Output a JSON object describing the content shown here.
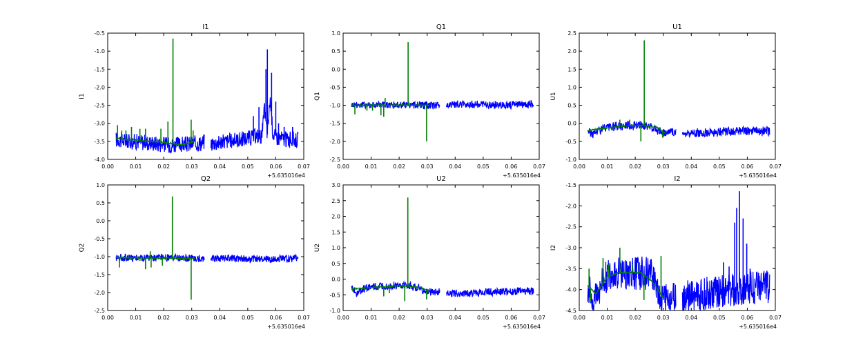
{
  "chart_data": [
    {
      "type": "line",
      "title": "I1",
      "ylabel": "I1",
      "xlabel": "",
      "offset_label": "+5.635016e4",
      "xlim": [
        0.0,
        0.07
      ],
      "ylim": [
        -4.0,
        -0.5
      ],
      "xticks": [
        "0.00",
        "0.01",
        "0.02",
        "0.03",
        "0.04",
        "0.05",
        "0.06",
        "0.07"
      ],
      "yticks": [
        "-4.0",
        "-3.5",
        "-3.0",
        "-2.5",
        "-2.0",
        "-1.5",
        "-1.0",
        "-0.5"
      ],
      "grid": false,
      "series": [
        {
          "color": "#0000ff",
          "x": [
            0.003,
            0.008,
            0.013,
            0.018,
            0.023,
            0.028,
            0.033,
            0.035,
            0.037,
            0.042,
            0.047,
            0.051,
            0.053,
            0.055,
            0.056,
            0.057,
            0.058,
            0.059,
            0.061,
            0.064,
            0.068
          ],
          "y": [
            -3.45,
            -3.5,
            -3.52,
            -3.56,
            -3.6,
            -3.58,
            -3.55,
            -3.5,
            -3.55,
            -3.5,
            -3.45,
            -3.4,
            -3.35,
            -3.35,
            -2.6,
            -3.3,
            -2.3,
            -3.3,
            -3.4,
            -3.45,
            -3.45
          ],
          "band": 0.22,
          "spikes": [
            [
              0.052,
              -2.8
            ],
            [
              0.054,
              -2.55
            ],
            [
              0.0565,
              -1.5
            ],
            [
              0.057,
              -0.95
            ],
            [
              0.0585,
              -1.6
            ],
            [
              0.06,
              -2.4
            ],
            [
              0.061,
              -3.0
            ],
            [
              0.063,
              -3.1
            ],
            [
              0.066,
              -3.1
            ]
          ]
        },
        {
          "color": "#007f00",
          "x": [
            0.003,
            0.006,
            0.01,
            0.014,
            0.018,
            0.022,
            0.026,
            0.029,
            0.031
          ],
          "y": [
            -3.4,
            -3.45,
            -3.45,
            -3.5,
            -3.5,
            -3.55,
            -3.6,
            -3.55,
            -3.5
          ],
          "band": 0.0,
          "spikes": [
            [
              0.0035,
              -3.05
            ],
            [
              0.005,
              -3.2
            ],
            [
              0.0065,
              -3.2
            ],
            [
              0.0085,
              -3.1
            ],
            [
              0.0115,
              -3.15
            ],
            [
              0.0135,
              -3.15
            ],
            [
              0.019,
              -3.15
            ],
            [
              0.0215,
              -2.95
            ],
            [
              0.0233,
              -0.65
            ],
            [
              0.0298,
              -2.9
            ],
            [
              0.0305,
              -3.2
            ]
          ]
        }
      ]
    },
    {
      "type": "line",
      "title": "Q1",
      "ylabel": "Q1",
      "xlabel": "",
      "offset_label": "+5.635016e4",
      "xlim": [
        0.0,
        0.07
      ],
      "ylim": [
        -2.5,
        1.0
      ],
      "xticks": [
        "0.00",
        "0.01",
        "0.02",
        "0.03",
        "0.04",
        "0.05",
        "0.06",
        "0.07"
      ],
      "yticks": [
        "-2.5",
        "-2.0",
        "-1.5",
        "-1.0",
        "-0.5",
        "0.0",
        "0.5",
        "1.0"
      ],
      "grid": false,
      "series": [
        {
          "color": "#0000ff",
          "x": [
            0.003,
            0.01,
            0.02,
            0.03,
            0.035,
            0.037,
            0.045,
            0.055,
            0.068
          ],
          "y": [
            -0.98,
            -0.99,
            -0.99,
            -1.0,
            -1.0,
            -0.98,
            -0.97,
            -1.0,
            -0.97
          ],
          "band": 0.1,
          "spikes": []
        },
        {
          "color": "#007f00",
          "x": [
            0.003,
            0.008,
            0.013,
            0.018,
            0.023,
            0.028,
            0.031
          ],
          "y": [
            -1.0,
            -1.0,
            -1.0,
            -1.0,
            -1.0,
            -1.0,
            -1.0
          ],
          "band": 0.0,
          "spikes": [
            [
              0.0042,
              -1.25
            ],
            [
              0.0085,
              -1.15
            ],
            [
              0.0105,
              -1.15
            ],
            [
              0.0135,
              -1.28
            ],
            [
              0.0145,
              -1.32
            ],
            [
              0.018,
              -1.1
            ],
            [
              0.0232,
              0.75
            ],
            [
              0.0298,
              -2.0
            ],
            [
              0.015,
              -0.8
            ]
          ]
        }
      ]
    },
    {
      "type": "line",
      "title": "U1",
      "ylabel": "U1",
      "xlabel": "",
      "offset_label": "+5.635016e4",
      "xlim": [
        0.0,
        0.07
      ],
      "ylim": [
        -1.0,
        2.5
      ],
      "xticks": [
        "0.00",
        "0.01",
        "0.02",
        "0.03",
        "0.04",
        "0.05",
        "0.06",
        "0.07"
      ],
      "yticks": [
        "-1.0",
        "-0.5",
        "0.0",
        "0.5",
        "1.0",
        "1.5",
        "2.0",
        "2.5"
      ],
      "grid": false,
      "series": [
        {
          "color": "#0000ff",
          "x": [
            0.003,
            0.004,
            0.005,
            0.006,
            0.008,
            0.012,
            0.016,
            0.02,
            0.024,
            0.027,
            0.029,
            0.031,
            0.035,
            0.037,
            0.04,
            0.045,
            0.05,
            0.055,
            0.06,
            0.068
          ],
          "y": [
            -0.2,
            -0.25,
            -0.3,
            -0.22,
            -0.15,
            -0.1,
            -0.06,
            -0.05,
            -0.08,
            -0.12,
            -0.25,
            -0.25,
            -0.25,
            -0.28,
            -0.28,
            -0.26,
            -0.24,
            -0.22,
            -0.22,
            -0.22
          ],
          "band": 0.12,
          "spikes": []
        },
        {
          "color": "#007f00",
          "x": [
            0.003,
            0.008,
            0.013,
            0.018,
            0.023,
            0.028,
            0.031
          ],
          "y": [
            -0.2,
            -0.15,
            -0.1,
            -0.06,
            -0.06,
            -0.12,
            -0.28
          ],
          "band": 0.0,
          "spikes": [
            [
              0.0035,
              -0.2
            ],
            [
              0.0085,
              -0.05
            ],
            [
              0.0115,
              -0.18
            ],
            [
              0.0145,
              0.1
            ],
            [
              0.018,
              0.1
            ],
            [
              0.022,
              -0.5
            ],
            [
              0.0232,
              2.3
            ],
            [
              0.0298,
              -0.4
            ]
          ]
        }
      ]
    },
    {
      "type": "line",
      "title": "Q2",
      "ylabel": "Q2",
      "xlabel": "",
      "offset_label": "+5.635016e4",
      "xlim": [
        0.0,
        0.07
      ],
      "ylim": [
        -2.5,
        1.0
      ],
      "xticks": [
        "0.00",
        "0.01",
        "0.02",
        "0.03",
        "0.04",
        "0.05",
        "0.06",
        "0.07"
      ],
      "yticks": [
        "-2.5",
        "-2.0",
        "-1.5",
        "-1.0",
        "-0.5",
        "0.0",
        "0.5",
        "1.0"
      ],
      "grid": false,
      "series": [
        {
          "color": "#0000ff",
          "x": [
            0.003,
            0.01,
            0.02,
            0.03,
            0.035,
            0.037,
            0.045,
            0.055,
            0.068
          ],
          "y": [
            -1.02,
            -1.03,
            -1.03,
            -1.05,
            -1.05,
            -1.03,
            -1.05,
            -1.08,
            -1.04
          ],
          "band": 0.1,
          "spikes": []
        },
        {
          "color": "#007f00",
          "x": [
            0.003,
            0.008,
            0.013,
            0.018,
            0.023,
            0.028,
            0.031
          ],
          "y": [
            -1.02,
            -1.03,
            -1.03,
            -1.04,
            -1.04,
            -1.05,
            -1.05
          ],
          "band": 0.0,
          "spikes": [
            [
              0.0042,
              -1.3
            ],
            [
              0.0085,
              -1.1
            ],
            [
              0.0115,
              -1.12
            ],
            [
              0.0135,
              -1.35
            ],
            [
              0.0155,
              -1.3
            ],
            [
              0.0152,
              -0.85
            ],
            [
              0.0195,
              -1.25
            ],
            [
              0.0231,
              0.68
            ],
            [
              0.0298,
              -2.2
            ]
          ]
        }
      ]
    },
    {
      "type": "line",
      "title": "U2",
      "ylabel": "U2",
      "xlabel": "",
      "offset_label": "+5.635016e4",
      "xlim": [
        0.0,
        0.07
      ],
      "ylim": [
        -1.0,
        3.0
      ],
      "xticks": [
        "0.00",
        "0.01",
        "0.02",
        "0.03",
        "0.04",
        "0.05",
        "0.06",
        "0.07"
      ],
      "yticks": [
        "-1.0",
        "-0.5",
        "0.0",
        "0.5",
        "1.0",
        "1.5",
        "2.0",
        "2.5",
        "3.0"
      ],
      "grid": false,
      "series": [
        {
          "color": "#0000ff",
          "x": [
            0.003,
            0.004,
            0.005,
            0.006,
            0.008,
            0.012,
            0.016,
            0.02,
            0.024,
            0.027,
            0.029,
            0.031,
            0.035,
            0.037,
            0.04,
            0.045,
            0.05,
            0.055,
            0.06,
            0.068
          ],
          "y": [
            -0.3,
            -0.35,
            -0.45,
            -0.4,
            -0.28,
            -0.25,
            -0.22,
            -0.22,
            -0.22,
            -0.28,
            -0.4,
            -0.4,
            -0.42,
            -0.45,
            -0.45,
            -0.45,
            -0.42,
            -0.4,
            -0.4,
            -0.38
          ],
          "band": 0.12,
          "spikes": []
        },
        {
          "color": "#007f00",
          "x": [
            0.003,
            0.008,
            0.013,
            0.018,
            0.023,
            0.028,
            0.031
          ],
          "y": [
            -0.32,
            -0.28,
            -0.25,
            -0.23,
            -0.22,
            -0.28,
            -0.42
          ],
          "band": 0.0,
          "spikes": [
            [
              0.0035,
              -0.4
            ],
            [
              0.0085,
              -0.25
            ],
            [
              0.0125,
              -0.35
            ],
            [
              0.0145,
              -0.55
            ],
            [
              0.0165,
              -0.45
            ],
            [
              0.022,
              -0.7
            ],
            [
              0.0231,
              2.6
            ],
            [
              0.0298,
              -0.65
            ]
          ]
        }
      ]
    },
    {
      "type": "line",
      "title": "I2",
      "ylabel": "I2",
      "xlabel": "",
      "offset_label": "+5.635016e4",
      "xlim": [
        0.0,
        0.07
      ],
      "ylim": [
        -4.5,
        -1.5
      ],
      "xticks": [
        "0.00",
        "0.01",
        "0.02",
        "0.03",
        "0.04",
        "0.05",
        "0.06",
        "0.07"
      ],
      "yticks": [
        "-4.5",
        "-4.0",
        "-3.5",
        "-3.0",
        "-2.5",
        "-2.0",
        "-1.5"
      ],
      "grid": false,
      "series": [
        {
          "color": "#0000ff",
          "x": [
            0.003,
            0.004,
            0.005,
            0.006,
            0.008,
            0.01,
            0.012,
            0.016,
            0.02,
            0.024,
            0.027,
            0.029,
            0.031,
            0.035,
            0.037,
            0.04,
            0.045,
            0.05,
            0.055,
            0.06,
            0.068
          ],
          "y": [
            -3.95,
            -4.1,
            -4.3,
            -4.1,
            -3.85,
            -3.7,
            -3.6,
            -3.6,
            -3.6,
            -3.6,
            -3.7,
            -4.2,
            -4.25,
            -4.2,
            -4.2,
            -4.15,
            -4.1,
            -4.05,
            -4.0,
            -3.95,
            -3.95
          ],
          "band": 0.4,
          "spikes": [
            [
              0.0515,
              -3.35
            ],
            [
              0.0535,
              -3.45
            ],
            [
              0.0555,
              -2.4
            ],
            [
              0.0562,
              -2.05
            ],
            [
              0.0572,
              -1.65
            ],
            [
              0.0585,
              -2.3
            ],
            [
              0.0598,
              -2.9
            ],
            [
              0.061,
              -3.5
            ],
            [
              0.064,
              -3.6
            ],
            [
              0.067,
              -3.55
            ]
          ]
        },
        {
          "color": "#007f00",
          "x": [
            0.003,
            0.006,
            0.01,
            0.014,
            0.018,
            0.022,
            0.026,
            0.028,
            0.03
          ],
          "y": [
            -3.9,
            -4.1,
            -3.7,
            -3.6,
            -3.6,
            -3.6,
            -3.8,
            -4.0,
            -4.2
          ],
          "band": 0.0,
          "spikes": [
            [
              0.0035,
              -3.5
            ],
            [
              0.004,
              -4.3
            ],
            [
              0.0085,
              -3.25
            ],
            [
              0.0105,
              -3.4
            ],
            [
              0.0145,
              -3.0
            ],
            [
              0.0165,
              -3.3
            ],
            [
              0.019,
              -3.4
            ],
            [
              0.0215,
              -3.35
            ],
            [
              0.0231,
              -4.25
            ],
            [
              0.0292,
              -3.2
            ]
          ]
        }
      ]
    }
  ]
}
